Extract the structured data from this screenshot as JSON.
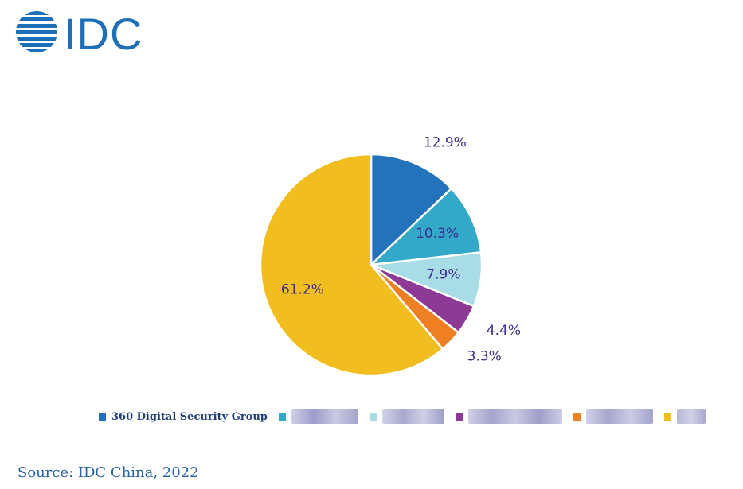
{
  "logo": {
    "text": "IDC",
    "color": "#1d6fb8"
  },
  "chart_data": {
    "type": "pie",
    "title": "",
    "start_angle_deg": 0,
    "direction": "clockwise",
    "slices": [
      {
        "label": "360 Digital Security Group",
        "value": 12.9,
        "display": "12.9%",
        "color": "#2273bb",
        "label_pos": "outside"
      },
      {
        "label": "",
        "value": 10.3,
        "display": "10.3%",
        "color": "#33a9c9",
        "label_pos": "inside"
      },
      {
        "label": "",
        "value": 7.9,
        "display": "7.9%",
        "color": "#a8dde8",
        "label_pos": "inside"
      },
      {
        "label": "",
        "value": 4.4,
        "display": "4.4%",
        "color": "#8d3a97",
        "label_pos": "outside"
      },
      {
        "label": "",
        "value": 3.3,
        "display": "3.3%",
        "color": "#ef7f23",
        "label_pos": "outside"
      },
      {
        "label": "",
        "value": 61.2,
        "display": "61.2%",
        "color": "#f2bd1f",
        "label_pos": "inside"
      }
    ],
    "label_color": "#3c2f8f",
    "legend_position": "bottom"
  },
  "legend": {
    "first_label": "360 Digital Security Group"
  },
  "source": {
    "text": "Source: IDC China, 2022"
  }
}
